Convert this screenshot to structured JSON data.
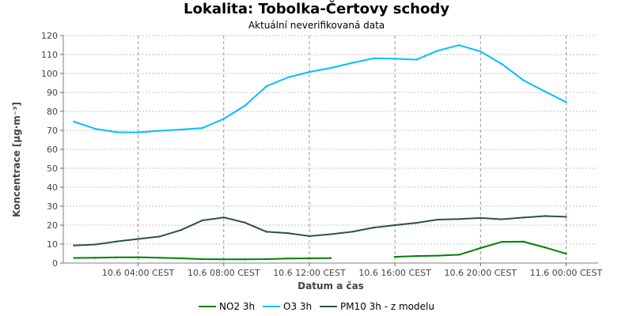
{
  "chart_data": {
    "type": "line",
    "title": "Lokalita: Tobolka-Čertovy schody",
    "subtitle": "Aktuální neverifikovaná data",
    "xlabel": "Datum a čas",
    "ylabel": "Koncentrace [µg·m⁻³]",
    "ylim": [
      0,
      120
    ],
    "yticks": [
      0,
      10,
      20,
      30,
      40,
      50,
      60,
      70,
      80,
      90,
      100,
      110,
      120
    ],
    "xlim": [
      -0.5,
      24.5
    ],
    "xticks": [
      {
        "x": 3,
        "label": "10.6 04:00 CEST"
      },
      {
        "x": 7,
        "label": "10.6 08:00 CEST"
      },
      {
        "x": 11,
        "label": "10.6 12:00 CEST"
      },
      {
        "x": 15,
        "label": "10.6 16:00 CEST"
      },
      {
        "x": 19,
        "label": "10.6 20:00 CEST"
      },
      {
        "x": 23,
        "label": "11.6 00:00 CEST"
      }
    ],
    "x_hours": [
      0,
      1,
      2,
      3,
      4,
      5,
      6,
      7,
      8,
      9,
      10,
      11,
      12,
      13,
      14,
      15,
      16,
      17,
      18,
      19,
      20,
      21,
      22,
      23,
      24
    ],
    "grid": true,
    "legend_position": "bottom",
    "series": [
      {
        "name": "NO2 3h",
        "color": "#008000",
        "values": [
          2.7,
          2.8,
          3.0,
          3.1,
          2.8,
          2.5,
          2.1,
          2.0,
          2.0,
          2.1,
          2.4,
          2.5,
          2.6,
          null,
          null,
          3.3,
          3.7,
          3.9,
          4.4,
          7.9,
          11.2,
          11.3,
          8.3,
          4.9,
          null
        ]
      },
      {
        "name": "O3 3h",
        "color": "#00bfff",
        "values": [
          74.6,
          70.8,
          69.0,
          68.9,
          69.8,
          70.4,
          71.2,
          76.1,
          83.1,
          93.3,
          97.9,
          100.8,
          102.9,
          105.6,
          108.0,
          107.8,
          107.3,
          112.0,
          114.9,
          111.6,
          105.0,
          96.4,
          90.6,
          84.9,
          null
        ]
      },
      {
        "name": "PM10 3h - z modelu",
        "color": "#2f4f4f",
        "values": [
          9.3,
          9.8,
          11.4,
          12.7,
          14.0,
          17.4,
          22.5,
          24.1,
          21.3,
          16.5,
          15.8,
          14.2,
          15.2,
          16.5,
          18.7,
          20.0,
          21.2,
          22.9,
          23.2,
          23.8,
          23.1,
          24.0,
          24.8,
          24.4,
          null
        ]
      }
    ]
  }
}
